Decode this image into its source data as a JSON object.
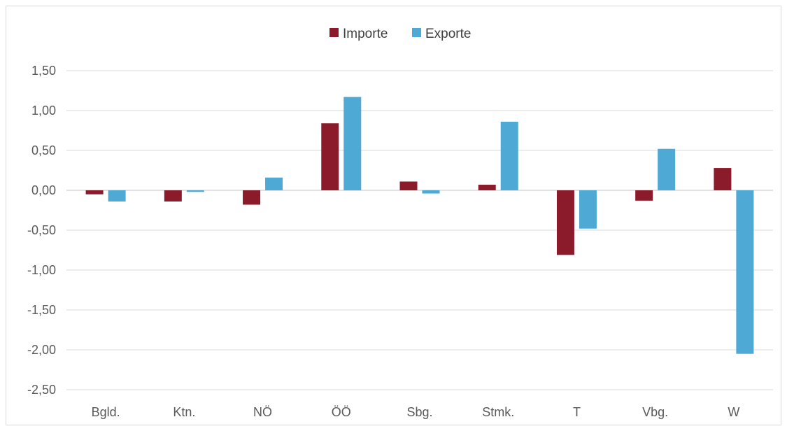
{
  "chart_data": {
    "type": "bar",
    "categories": [
      "Bgld.",
      "Ktn.",
      "NÖ",
      "ÖÖ",
      "Sbg.",
      "Stmk.",
      "T",
      "Vbg.",
      "W"
    ],
    "series": [
      {
        "name": "Importe",
        "color": "#8b1a2b",
        "values": [
          -0.05,
          -0.14,
          -0.18,
          0.84,
          0.11,
          0.07,
          -0.81,
          -0.13,
          0.28
        ]
      },
      {
        "name": "Exporte",
        "color": "#4ea9d5",
        "values": [
          -0.14,
          -0.02,
          0.16,
          1.17,
          -0.04,
          0.86,
          -0.48,
          0.52,
          -2.05
        ]
      }
    ],
    "ylim": [
      -2.5,
      1.5
    ],
    "yticks": [
      1.5,
      1.0,
      0.5,
      0.0,
      -0.5,
      -1.0,
      -1.5,
      -2.0,
      -2.5
    ],
    "ytick_labels": [
      "1,50",
      "1,00",
      "0,50",
      "0,00",
      "-0,50",
      "-1,00",
      "-1,50",
      "-2,00",
      "-2,50"
    ],
    "legend_position": "top-center",
    "grid": true,
    "gridline_color": "#d9d9d9",
    "axis_label_color": "#595959"
  }
}
